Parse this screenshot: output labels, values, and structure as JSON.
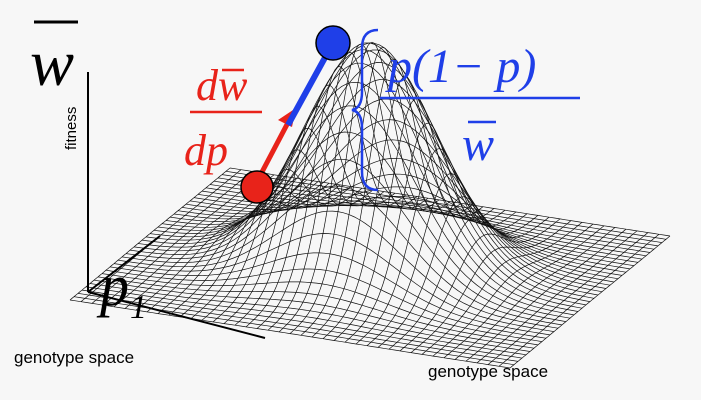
{
  "labels": {
    "fitness_symbol": "w",
    "fitness_axis": "fitness",
    "genotype_symbol": "p",
    "genotype_subscript": "1",
    "genotype_left": "genotype space",
    "genotype_right": "genotype space",
    "gradient_numerator": "dw",
    "gradient_denominator": "dp",
    "variance_numerator": "p(1− p)",
    "variance_denominator": "w"
  }
}
